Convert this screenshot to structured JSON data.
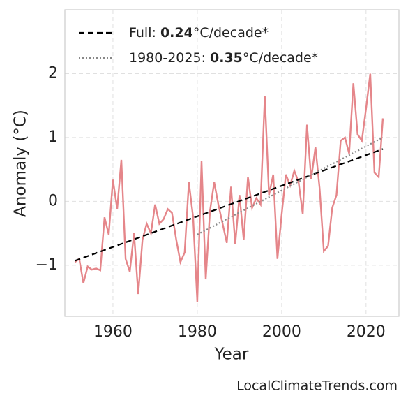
{
  "chart_data": {
    "type": "line",
    "xlabel": "Year",
    "ylabel": "Anomaly (°C)",
    "source": "LocalClimateTrends.com",
    "xlim": [
      1948.6,
      2027.8
    ],
    "ylim": [
      -1.8,
      3.0
    ],
    "xticks": [
      1960,
      1980,
      2000,
      2020
    ],
    "yticks": [
      {
        "value": -1,
        "label": "−1"
      },
      0,
      1,
      2
    ],
    "grid": true,
    "legend": "upper left",
    "series": [
      {
        "color": "#e5868a",
        "dash": "solid",
        "x": [
          1951,
          1952,
          1953,
          1954,
          1955,
          1956,
          1957,
          1958,
          1959,
          1960,
          1961,
          1962,
          1963,
          1964,
          1965,
          1966,
          1967,
          1968,
          1969,
          1970,
          1971,
          1972,
          1973,
          1974,
          1975,
          1976,
          1977,
          1978,
          1979,
          1980,
          1981,
          1982,
          1983,
          1984,
          1985,
          1986,
          1987,
          1988,
          1989,
          1990,
          1991,
          1992,
          1993,
          1994,
          1995,
          1996,
          1997,
          1998,
          1999,
          2000,
          2001,
          2002,
          2003,
          2004,
          2005,
          2006,
          2007,
          2008,
          2009,
          2010,
          2011,
          2012,
          2013,
          2014,
          2015,
          2016,
          2017,
          2018,
          2019,
          2020,
          2021,
          2022,
          2023,
          2024
        ],
        "values": [
          -0.95,
          -0.9,
          -1.28,
          -1.02,
          -1.07,
          -1.05,
          -1.08,
          -0.25,
          -0.52,
          0.34,
          -0.12,
          0.65,
          -0.9,
          -1.1,
          -0.5,
          -1.45,
          -0.6,
          -0.35,
          -0.5,
          -0.05,
          -0.35,
          -0.28,
          -0.12,
          -0.18,
          -0.6,
          -0.95,
          -0.8,
          0.3,
          -0.25,
          -1.57,
          0.63,
          -1.22,
          -0.15,
          0.3,
          -0.05,
          -0.35,
          -0.65,
          0.23,
          -0.67,
          0.1,
          -0.6,
          0.38,
          -0.1,
          0.05,
          -0.05,
          1.65,
          0.1,
          0.42,
          -0.9,
          -0.2,
          0.42,
          0.25,
          0.48,
          0.3,
          -0.2,
          1.2,
          0.35,
          0.85,
          0.2,
          -0.78,
          -0.7,
          -0.1,
          0.1,
          0.95,
          1.0,
          0.75,
          1.85,
          1.05,
          0.95,
          1.45,
          2.0,
          0.45,
          0.38,
          1.3
        ]
      },
      {
        "color": "#000000",
        "dash": "dashed",
        "label": [
          "Full: ",
          "0.24",
          "°C/decade*"
        ],
        "x": [
          1951,
          2024
        ],
        "values": [
          -0.93,
          0.82
        ]
      },
      {
        "color": "#888888",
        "dash": "dotted",
        "label": [
          "1980-2025: ",
          "0.35",
          "°C/decade*"
        ],
        "x": [
          1980,
          2024
        ],
        "values": [
          -0.52,
          1.0
        ]
      }
    ]
  }
}
